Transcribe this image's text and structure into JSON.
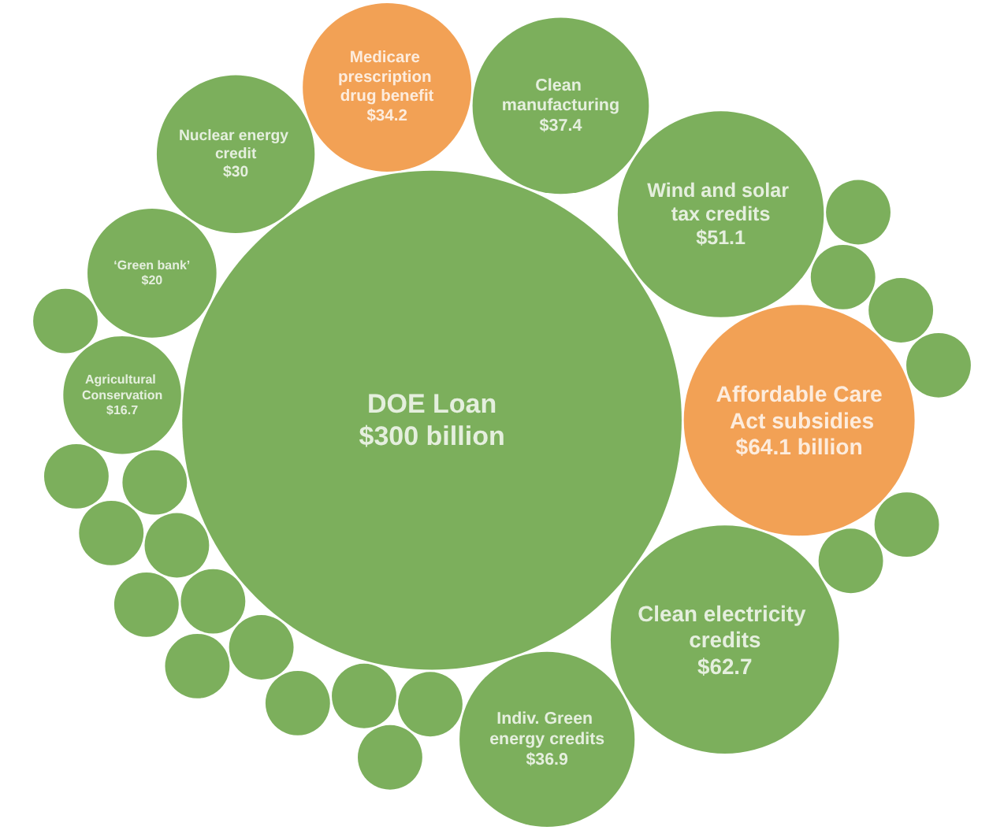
{
  "chart_data": {
    "type": "other",
    "categories": [
      "Clean electricity credits",
      null,
      null,
      null,
      "Nuclear energy credit",
      "Indiv. Green energy credits",
      null,
      "DOE Loan",
      null,
      null,
      "Affordable Care Act subsidies",
      null,
      null,
      null,
      "Clean manufacturing",
      null,
      "Wind and solar tax credits",
      null,
      null,
      null,
      "Medicare prescription drug benefit",
      "Agricultural Conservation",
      null,
      "‘Green bank’",
      null,
      null,
      null,
      null,
      null
    ],
    "values": [
      62.7,
      null,
      null,
      null,
      30,
      36.9,
      null,
      300,
      null,
      null,
      64.1,
      null,
      null,
      null,
      37.4,
      null,
      51.1,
      null,
      null,
      null,
      34.2,
      16.7,
      null,
      20,
      null,
      null,
      null,
      null,
      null
    ],
    "value_labels": [
      "$62.7",
      null,
      null,
      null,
      "$30",
      "$36.9",
      null,
      "$300 billion",
      null,
      null,
      "$64.1 billion",
      null,
      null,
      null,
      "$37.4",
      null,
      "$51.1",
      null,
      null,
      null,
      "$34.2",
      "$16.7",
      null,
      "$20",
      null,
      null,
      null,
      null,
      null
    ],
    "colors": [
      "#5b9b33",
      "#5b9b33",
      "#5b9b33",
      "#5b9b33",
      "#5b9b33",
      "#5b9b33",
      "#5b9b33",
      "#5b9b33",
      "#5b9b33",
      "#5b9b33",
      "#ef8a2b",
      "#5b9b33",
      "#5b9b33",
      "#5b9b33",
      "#5b9b33",
      "#5b9b33",
      "#5b9b33",
      "#5b9b33",
      "#5b9b33",
      "#5b9b33",
      "#ef8a2b",
      "#5b9b33",
      "#5b9b33",
      "#5b9b33",
      "#5b9b33",
      "#5b9b33",
      "#5b9b33",
      "#5b9b33",
      "#5b9b33"
    ]
  }
}
